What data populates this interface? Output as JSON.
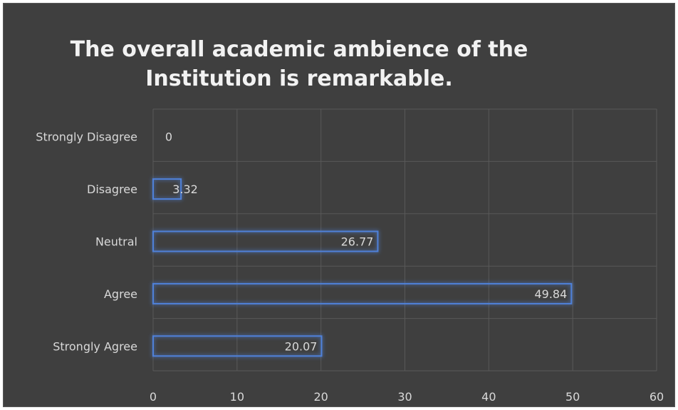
{
  "chart_data": {
    "type": "bar",
    "orientation": "horizontal",
    "title": "The overall academic ambience of the Institution is remarkable.",
    "categories": [
      "Strongly Disagree",
      "Disagree",
      "Neutral",
      "Agree",
      "Strongly Agree"
    ],
    "values": [
      0,
      3.32,
      26.77,
      49.84,
      20.07
    ],
    "xlim": [
      0,
      60
    ],
    "xticks": [
      0,
      10,
      20,
      30,
      40,
      50,
      60
    ],
    "grid": true,
    "legend": "none",
    "colors": {
      "background": "#3f3f3f",
      "bar_outline": "#4f81d9",
      "gridline": "#595959",
      "text": "#d9d9d9"
    }
  }
}
